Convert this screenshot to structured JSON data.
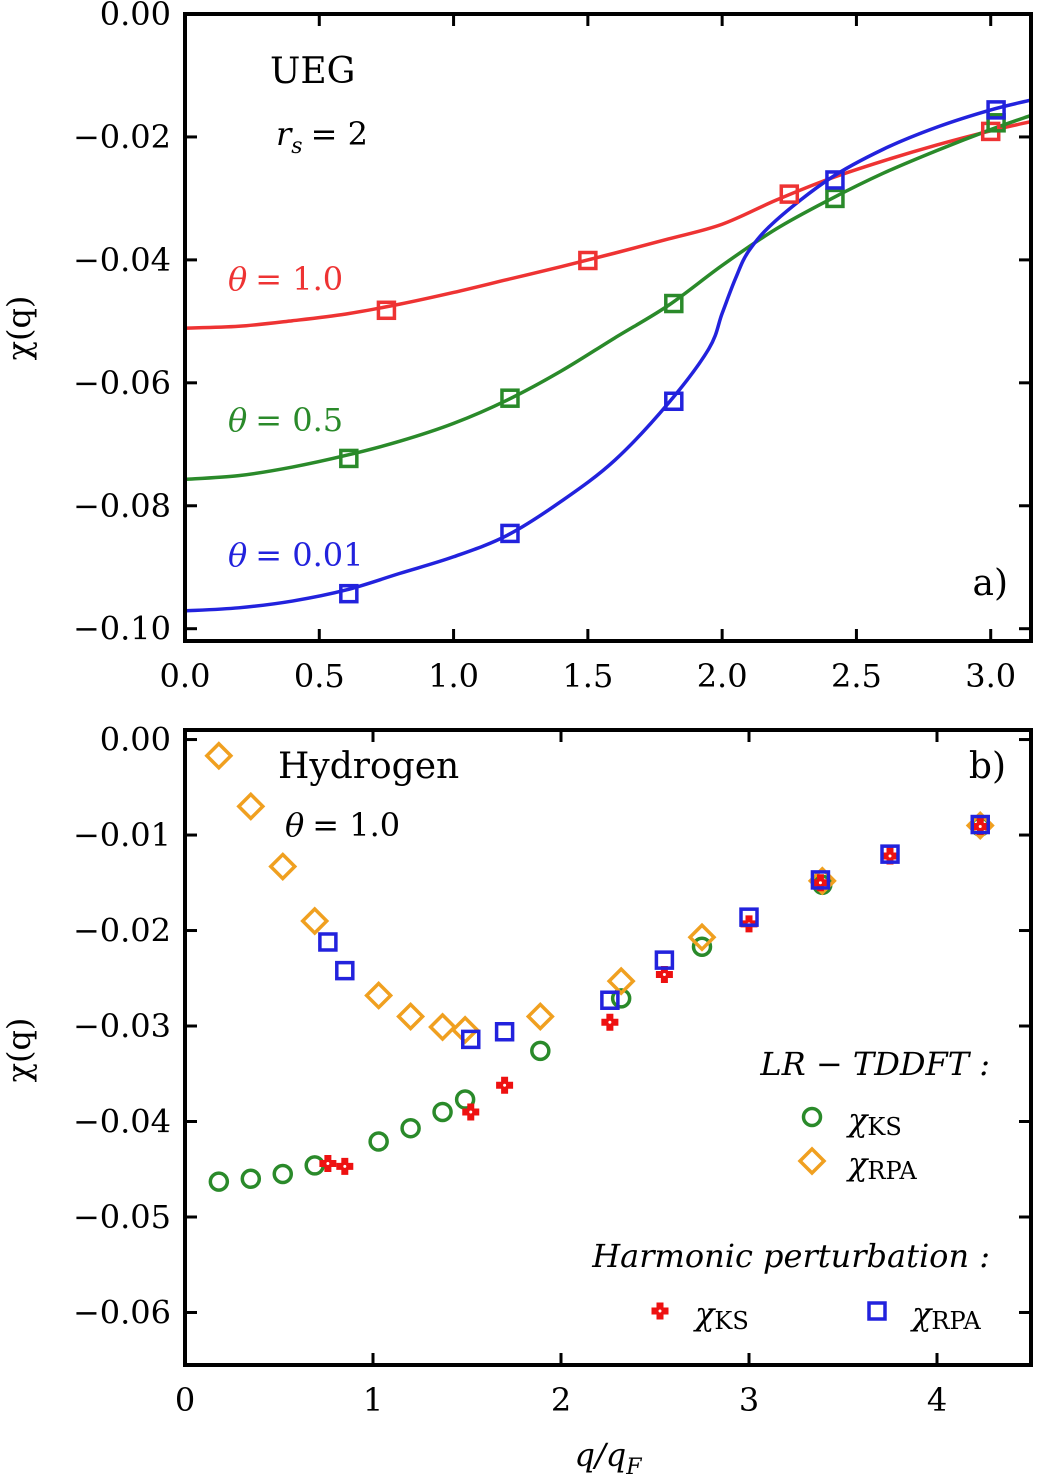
{
  "chart_data": [
    {
      "panel": "a)",
      "type": "line",
      "ylabel": "χ(q)",
      "xlabel": "",
      "xlim": [
        0.0,
        3.15
      ],
      "ylim": [
        -0.102,
        0.0
      ],
      "xticks": [
        0.0,
        0.5,
        1.0,
        1.5,
        2.0,
        2.5,
        3.0
      ],
      "xtick_labels": [
        "0.0",
        "0.5",
        "1.0",
        "1.5",
        "2.0",
        "2.5",
        "3.0"
      ],
      "yticks": [
        0.0,
        -0.02,
        -0.04,
        -0.06,
        -0.08,
        -0.1
      ],
      "ytick_labels": [
        "0.00",
        "−0.02",
        "−0.04",
        "−0.06",
        "−0.08",
        "−0.10"
      ],
      "annotations": {
        "system": "UEG",
        "rs_symbol": "r",
        "rs_sub": "s",
        "rs_value": "= 2"
      },
      "series": [
        {
          "name": "θ = 1.0",
          "label_math": "θ",
          "label_value": "= 1.0",
          "color": "#ee3333",
          "line_x": [
            0.0,
            0.2,
            0.4,
            0.6,
            0.8,
            1.0,
            1.2,
            1.4,
            1.6,
            1.8,
            2.0,
            2.2,
            2.4,
            2.6,
            2.8,
            3.0,
            3.15
          ],
          "line_y": [
            -0.0511,
            -0.0508,
            -0.0499,
            -0.0488,
            -0.0472,
            -0.0453,
            -0.0432,
            -0.0411,
            -0.0389,
            -0.0366,
            -0.0342,
            -0.0303,
            -0.0268,
            -0.0239,
            -0.0213,
            -0.019,
            -0.0175
          ],
          "points_x": [
            0.75,
            1.5,
            2.25,
            3.0
          ],
          "points_y": [
            -0.0482,
            -0.0401,
            -0.0293,
            -0.0191
          ]
        },
        {
          "name": "θ = 0.5",
          "label_math": "θ",
          "label_value": "= 0.5",
          "color": "#2a8a2a",
          "line_x": [
            0.0,
            0.2,
            0.4,
            0.6,
            0.8,
            1.0,
            1.2,
            1.4,
            1.6,
            1.8,
            2.0,
            2.2,
            2.4,
            2.6,
            2.8,
            3.0,
            3.15
          ],
          "line_y": [
            -0.0757,
            -0.0751,
            -0.0737,
            -0.0718,
            -0.0695,
            -0.0666,
            -0.0628,
            -0.0581,
            -0.0527,
            -0.0474,
            -0.0409,
            -0.035,
            -0.0302,
            -0.0259,
            -0.0222,
            -0.0188,
            -0.0165
          ],
          "points_x": [
            0.61,
            1.21,
            1.82,
            2.42,
            3.02
          ],
          "points_y": [
            -0.0723,
            -0.0625,
            -0.0471,
            -0.03,
            -0.0177
          ]
        },
        {
          "name": "θ = 0.01",
          "label_math": "θ",
          "label_value": "= 0.01",
          "color": "#2222dd",
          "line_x": [
            0.0,
            0.2,
            0.4,
            0.6,
            0.8,
            1.0,
            1.2,
            1.4,
            1.6,
            1.8,
            1.95,
            2.0,
            2.05,
            2.1,
            2.2,
            2.4,
            2.6,
            2.8,
            3.0,
            3.15
          ],
          "line_y": [
            -0.0971,
            -0.0966,
            -0.0955,
            -0.0937,
            -0.091,
            -0.0883,
            -0.0848,
            -0.0793,
            -0.0726,
            -0.0633,
            -0.0545,
            -0.0487,
            -0.043,
            -0.0385,
            -0.0336,
            -0.0268,
            -0.022,
            -0.0184,
            -0.0156,
            -0.014
          ],
          "points_x": [
            0.61,
            1.21,
            1.82,
            2.42,
            3.02
          ],
          "points_y": [
            -0.0943,
            -0.0845,
            -0.063,
            -0.027,
            -0.0156
          ]
        }
      ]
    },
    {
      "panel": "b)",
      "type": "scatter",
      "ylabel": "χ(q)",
      "xlabel": "q/q",
      "xlabel_sub": "F",
      "xlim": [
        0.0,
        4.5
      ],
      "ylim": [
        -0.0655,
        0.001
      ],
      "xticks": [
        0,
        1,
        2,
        3,
        4
      ],
      "xtick_labels": [
        "0",
        "1",
        "2",
        "3",
        "4"
      ],
      "yticks": [
        0.0,
        -0.01,
        -0.02,
        -0.03,
        -0.04,
        -0.05,
        -0.06
      ],
      "ytick_labels": [
        "0.00",
        "−0.01",
        "−0.02",
        "−0.03",
        "−0.04",
        "−0.05",
        "−0.06"
      ],
      "annotations": {
        "system": "Hydrogen",
        "theta_math": "θ",
        "theta_value": "= 1.0"
      },
      "legend": {
        "placement": "bottom-right",
        "lr_title": "LR − TDDFT :",
        "harm_title": "Harmonic perturbation :",
        "chi": "χ",
        "ks_sub": "KS",
        "rpa_sub": "RPA"
      },
      "series": [
        {
          "name": "LR-TDDFT χKS",
          "marker": "circle",
          "color": "#2a8a2a",
          "x": [
            0.18,
            0.35,
            0.52,
            0.69,
            1.03,
            1.2,
            1.37,
            1.49,
            1.89,
            2.32,
            2.75,
            3.39,
            4.23
          ],
          "y": [
            -0.0463,
            -0.046,
            -0.0455,
            -0.0446,
            -0.0421,
            -0.0407,
            -0.039,
            -0.0377,
            -0.0326,
            -0.0271,
            -0.0217,
            -0.0152,
            -0.0091
          ]
        },
        {
          "name": "LR-TDDFT χRPA",
          "marker": "diamond",
          "color": "#f0a020",
          "x": [
            0.18,
            0.35,
            0.52,
            0.69,
            1.03,
            1.2,
            1.37,
            1.49,
            1.89,
            2.32,
            2.75,
            3.39,
            4.23
          ],
          "y": [
            -0.0017,
            -0.007,
            -0.0133,
            -0.019,
            -0.0268,
            -0.029,
            -0.0301,
            -0.0304,
            -0.029,
            -0.0253,
            -0.0207,
            -0.0148,
            -0.009
          ]
        },
        {
          "name": "Harmonic χKS",
          "marker": "cross",
          "color": "#ee1111",
          "x": [
            0.76,
            0.85,
            1.52,
            1.7,
            2.26,
            2.55,
            3.0,
            3.38,
            3.75,
            4.23
          ],
          "y": [
            -0.0444,
            -0.0447,
            -0.039,
            -0.0362,
            -0.0296,
            -0.0246,
            -0.0193,
            -0.015,
            -0.0122,
            -0.0091
          ]
        },
        {
          "name": "Harmonic χRPA",
          "marker": "square",
          "color": "#2222dd",
          "x": [
            0.76,
            0.85,
            1.52,
            1.7,
            2.26,
            2.55,
            3.0,
            3.38,
            3.75,
            4.23
          ],
          "y": [
            -0.0212,
            -0.0242,
            -0.0314,
            -0.0306,
            -0.0273,
            -0.0231,
            -0.0186,
            -0.0147,
            -0.012,
            -0.0089
          ]
        }
      ]
    }
  ]
}
